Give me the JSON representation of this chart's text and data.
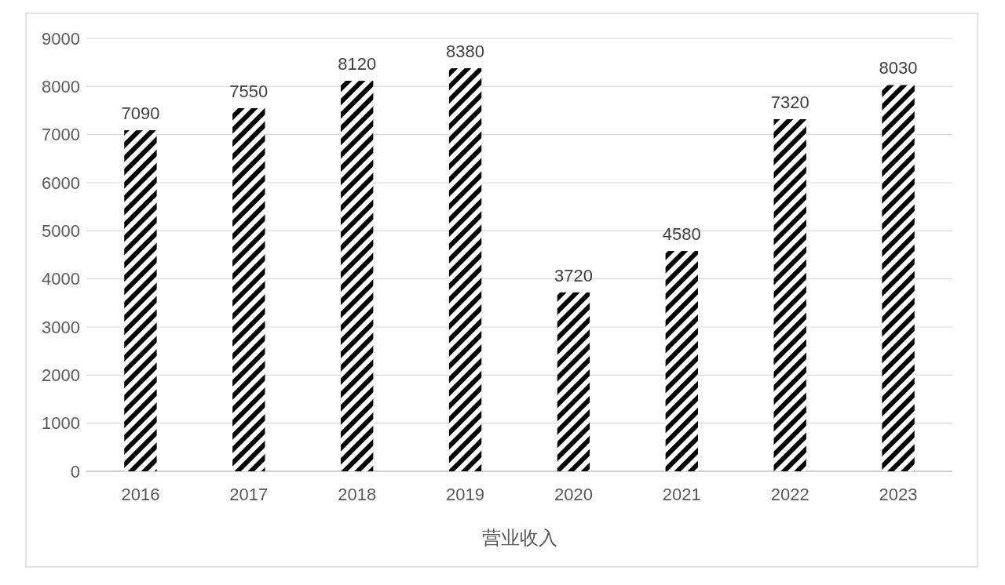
{
  "chart_data": {
    "type": "bar",
    "xlabel": "营业收入",
    "categories": [
      "2016",
      "2017",
      "2018",
      "2019",
      "2020",
      "2021",
      "2022",
      "2023"
    ],
    "values": [
      7090,
      7550,
      8120,
      8380,
      3720,
      4580,
      7320,
      8030
    ],
    "color": "#000000",
    "ylim": [
      0,
      9000
    ],
    "yticks": [
      0,
      1000,
      2000,
      3000,
      4000,
      5000,
      6000,
      7000,
      8000,
      9000
    ],
    "grid": "y",
    "data_labels": true
  }
}
